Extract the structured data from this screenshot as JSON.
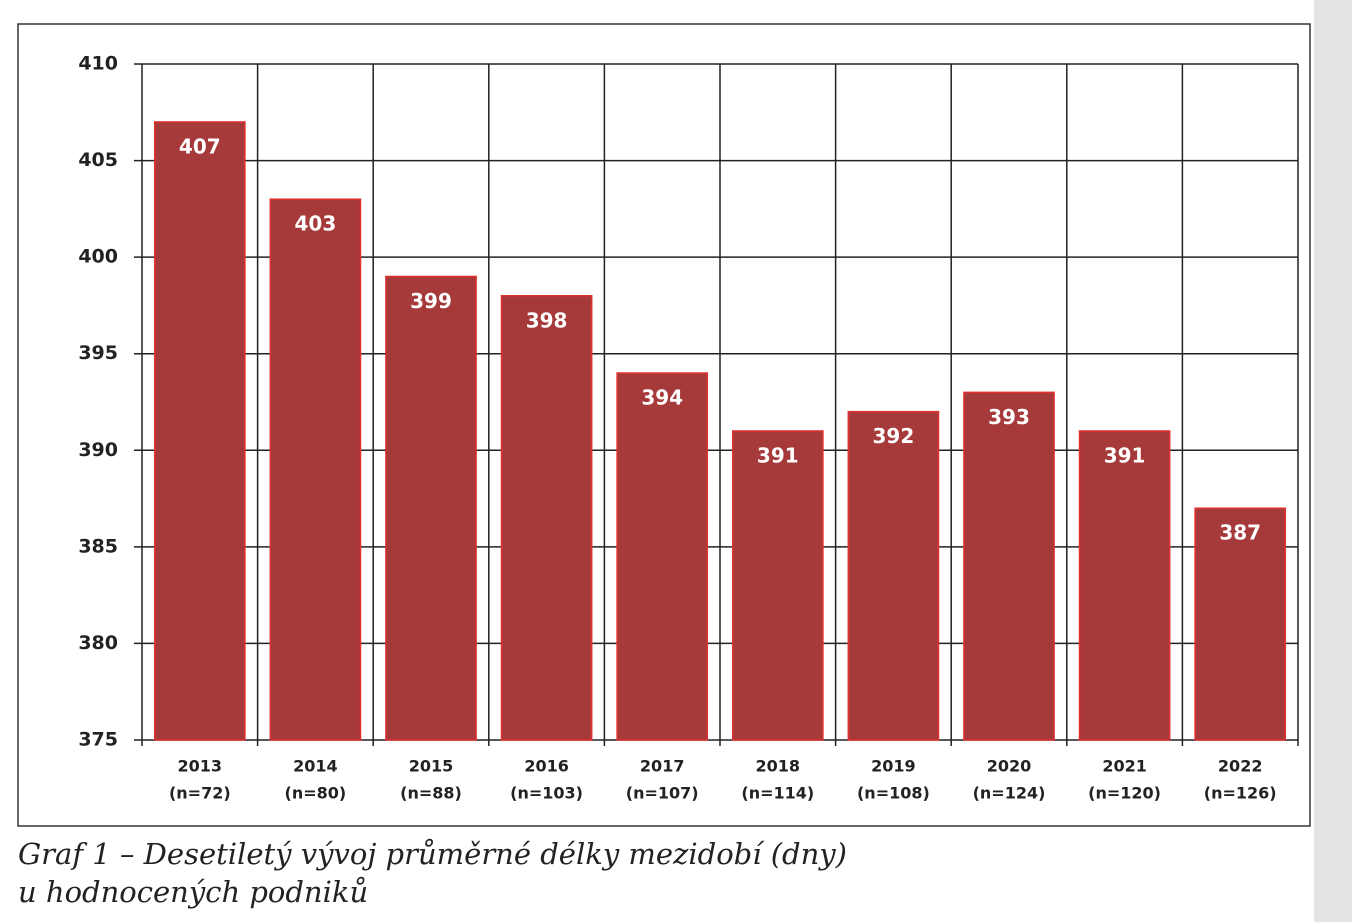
{
  "chart_data": {
    "type": "bar",
    "categories": [
      "2013",
      "2014",
      "2015",
      "2016",
      "2017",
      "2018",
      "2019",
      "2020",
      "2021",
      "2022"
    ],
    "category_notes": [
      "(n=72)",
      "(n=80)",
      "(n=88)",
      "(n=103)",
      "(n=107)",
      "(n=114)",
      "(n=108)",
      "(n=124)",
      "(n=120)",
      "(n=126)"
    ],
    "values": [
      407,
      403,
      399,
      398,
      394,
      391,
      392,
      393,
      391,
      387
    ],
    "color": "#a63a3a",
    "ylim": [
      375,
      410
    ],
    "yticks": [
      375,
      380,
      385,
      390,
      395,
      400,
      405,
      410
    ],
    "grid": true,
    "caption": [
      "Graf 1 – Desetiletý vývoj průměrné délky mezidobí (dny)",
      "u hodnocených podniků"
    ]
  }
}
